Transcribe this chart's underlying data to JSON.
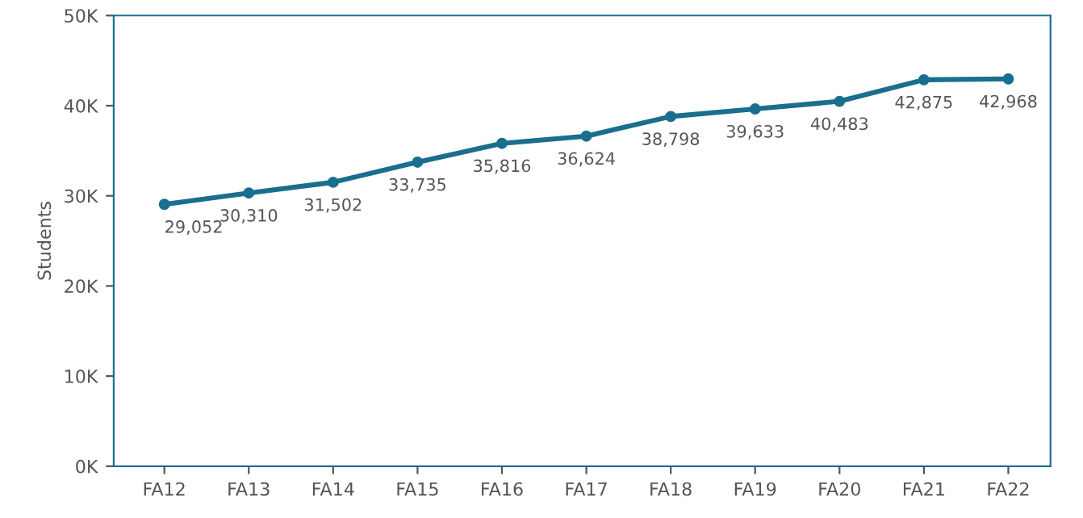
{
  "chart_data": {
    "type": "line",
    "ylabel": "Students",
    "categories": [
      "FA12",
      "FA13",
      "FA14",
      "FA15",
      "FA16",
      "FA17",
      "FA18",
      "FA19",
      "FA20",
      "FA21",
      "FA22"
    ],
    "series": [
      {
        "color": "#1a6e8e",
        "values": [
          29052,
          30310,
          31502,
          33735,
          35816,
          36624,
          38798,
          39633,
          40483,
          42875,
          42968
        ],
        "value_labels": [
          "29,052",
          "30,310",
          "31,502",
          "33,735",
          "35,816",
          "36,624",
          "38,798",
          "39,633",
          "40,483",
          "42,875",
          "42,968"
        ]
      }
    ],
    "ylim": [
      0,
      50000
    ],
    "yticks": [
      {
        "value": 0,
        "label": "0K"
      },
      {
        "value": 10000,
        "label": "10K"
      },
      {
        "value": 20000,
        "label": "20K"
      },
      {
        "value": 30000,
        "label": "30K"
      },
      {
        "value": 40000,
        "label": "40K"
      },
      {
        "value": 50000,
        "label": "50K"
      }
    ],
    "marker": "circle",
    "line_style": "solid",
    "grid": false
  }
}
